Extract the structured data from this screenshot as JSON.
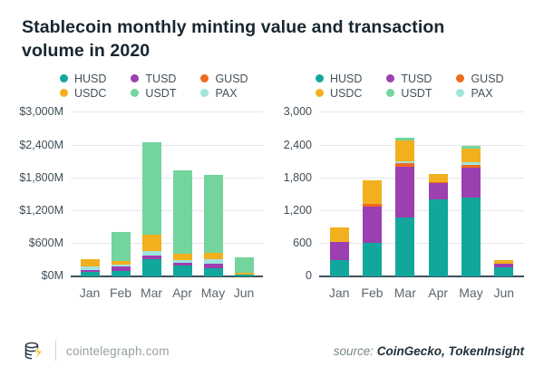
{
  "title": "Stablecoin monthly minting value and transaction volume in 2020",
  "legend": {
    "columns": [
      [
        "HUSD",
        "USDC"
      ],
      [
        "TUSD",
        "USDT"
      ],
      [
        "GUSD",
        "PAX"
      ]
    ]
  },
  "colors": {
    "HUSD": "#12a79c",
    "USDC": "#f2b01e",
    "TUSD": "#9c3fb0",
    "USDT": "#74d49e",
    "GUSD": "#f2691e",
    "PAX": "#a0e4de"
  },
  "chart_data": [
    {
      "type": "bar",
      "stacked": true,
      "categories": [
        "Jan",
        "Feb",
        "Mar",
        "Apr",
        "May",
        "Jun"
      ],
      "y_ticks": [
        "$3,000M",
        "$2,400M",
        "$1,800M",
        "$1,200M",
        "$600M",
        "$0M"
      ],
      "ylim": [
        0,
        3000
      ],
      "grid": true,
      "legend_position": "top",
      "stack_order": [
        "HUSD",
        "TUSD",
        "GUSD",
        "PAX",
        "USDC",
        "USDT"
      ],
      "series": [
        {
          "name": "HUSD",
          "values": [
            95,
            110,
            320,
            210,
            165,
            45
          ]
        },
        {
          "name": "USDC",
          "values": [
            125,
            65,
            300,
            110,
            120,
            30
          ]
        },
        {
          "name": "TUSD",
          "values": [
            35,
            75,
            65,
            40,
            70,
            0
          ]
        },
        {
          "name": "USDT",
          "values": [
            0,
            525,
            1695,
            1530,
            1430,
            275
          ]
        },
        {
          "name": "GUSD",
          "values": [
            0,
            0,
            0,
            0,
            0,
            0
          ]
        },
        {
          "name": "PAX",
          "values": [
            65,
            45,
            80,
            55,
            80,
            0
          ]
        }
      ]
    },
    {
      "type": "bar",
      "stacked": true,
      "categories": [
        "Jan",
        "Feb",
        "Mar",
        "Apr",
        "May",
        "Jun"
      ],
      "y_ticks": [
        "3,000",
        "2,400",
        "1,800",
        "1,200",
        "600",
        "0"
      ],
      "ylim": [
        0,
        3000
      ],
      "grid": true,
      "legend_position": "top",
      "stack_order": [
        "HUSD",
        "TUSD",
        "GUSD",
        "PAX",
        "USDC",
        "USDT"
      ],
      "series": [
        {
          "name": "HUSD",
          "values": [
            310,
            620,
            1080,
            1420,
            1450,
            180
          ]
        },
        {
          "name": "USDC",
          "values": [
            260,
            435,
            385,
            145,
            235,
            70
          ]
        },
        {
          "name": "TUSD",
          "values": [
            330,
            670,
            940,
            290,
            545,
            60
          ]
        },
        {
          "name": "USDT",
          "values": [
            0,
            0,
            45,
            0,
            50,
            0
          ]
        },
        {
          "name": "GUSD",
          "values": [
            0,
            40,
            55,
            25,
            55,
            0
          ]
        },
        {
          "name": "PAX",
          "values": [
            0,
            0,
            40,
            0,
            55,
            0
          ]
        }
      ]
    }
  ],
  "footer": {
    "site": "cointelegraph.com",
    "source_label": "source:",
    "source_value": "CoinGecko, TokenInsight"
  }
}
